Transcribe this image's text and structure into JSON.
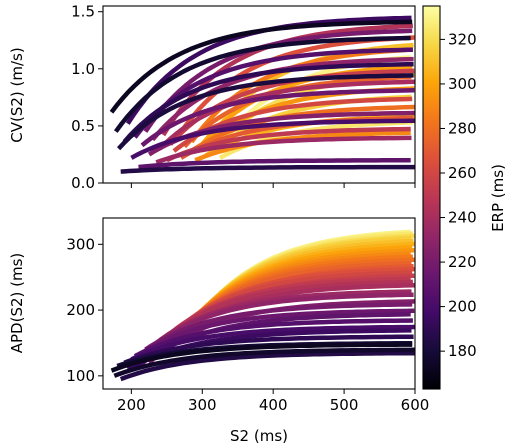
{
  "chart_data": [
    {
      "type": "line",
      "panel": "top",
      "xlabel": "",
      "ylabel": "CV(S2) (m/s)",
      "xlim": [
        160,
        600
      ],
      "ylim": [
        0.0,
        1.55
      ],
      "xticks": [
        200,
        300,
        400,
        500,
        600
      ],
      "xtick_labels_shown": false,
      "yticks": [
        0.0,
        0.5,
        1.0,
        1.5
      ],
      "ytick_labels": [
        "0.0",
        "0.5",
        "1.0",
        "1.5"
      ],
      "colored_by": "ERP (ms)",
      "series_description": "Restitution curves CV vs S2, each starting at S2 = ERP; asymptotic CV spans ~0.12–1.48 m/s",
      "curves": [
        {
          "erp": 172,
          "start_value": 0.62,
          "plateau": 1.42
        },
        {
          "erp": 178,
          "start_value": 0.45,
          "plateau": 1.28
        },
        {
          "erp": 182,
          "start_value": 0.3,
          "plateau": 0.95
        },
        {
          "erp": 185,
          "start_value": 0.1,
          "plateau": 0.14
        },
        {
          "erp": 190,
          "start_value": 0.36,
          "plateau": 1.05
        },
        {
          "erp": 195,
          "start_value": 0.52,
          "plateau": 1.46
        },
        {
          "erp": 200,
          "start_value": 0.22,
          "plateau": 0.55
        },
        {
          "erp": 205,
          "start_value": 0.4,
          "plateau": 1.18
        },
        {
          "erp": 210,
          "start_value": 0.14,
          "plateau": 0.2
        },
        {
          "erp": 215,
          "start_value": 0.33,
          "plateau": 0.82
        },
        {
          "erp": 220,
          "start_value": 0.45,
          "plateau": 1.35
        },
        {
          "erp": 225,
          "start_value": 0.25,
          "plateau": 0.62
        },
        {
          "erp": 230,
          "start_value": 0.38,
          "plateau": 1.1
        },
        {
          "erp": 235,
          "start_value": 0.18,
          "plateau": 0.4
        },
        {
          "erp": 240,
          "start_value": 0.3,
          "plateau": 0.9
        },
        {
          "erp": 245,
          "start_value": 0.42,
          "plateau": 1.4
        },
        {
          "erp": 250,
          "start_value": 0.2,
          "plateau": 0.48
        },
        {
          "erp": 255,
          "start_value": 0.34,
          "plateau": 1.0
        },
        {
          "erp": 260,
          "start_value": 0.28,
          "plateau": 0.75
        },
        {
          "erp": 265,
          "start_value": 0.4,
          "plateau": 1.3
        },
        {
          "erp": 270,
          "start_value": 0.22,
          "plateau": 0.58
        },
        {
          "erp": 275,
          "start_value": 0.32,
          "plateau": 0.95
        },
        {
          "erp": 280,
          "start_value": 0.26,
          "plateau": 0.68
        },
        {
          "erp": 285,
          "start_value": 0.36,
          "plateau": 1.2
        },
        {
          "erp": 290,
          "start_value": 0.2,
          "plateau": 0.45
        },
        {
          "erp": 295,
          "start_value": 0.3,
          "plateau": 0.85
        },
        {
          "erp": 300,
          "start_value": 0.34,
          "plateau": 1.05
        },
        {
          "erp": 305,
          "start_value": 0.24,
          "plateau": 0.6
        },
        {
          "erp": 310,
          "start_value": 0.38,
          "plateau": 1.25
        },
        {
          "erp": 315,
          "start_value": 0.28,
          "plateau": 0.78
        },
        {
          "erp": 320,
          "start_value": 0.32,
          "plateau": 0.98
        },
        {
          "erp": 325,
          "start_value": 0.22,
          "plateau": 0.55
        },
        {
          "erp": 330,
          "start_value": 0.36,
          "plateau": 1.15
        }
      ]
    },
    {
      "type": "line",
      "panel": "bottom",
      "xlabel": "S2 (ms)",
      "ylabel": "APD(S2) (ms)",
      "xlim": [
        160,
        600
      ],
      "ylim": [
        80,
        340
      ],
      "xticks": [
        200,
        300,
        400,
        500,
        600
      ],
      "xtick_labels": [
        "200",
        "300",
        "400",
        "500",
        "600"
      ],
      "yticks": [
        100,
        200,
        300
      ],
      "ytick_labels": [
        "100",
        "200",
        "300"
      ],
      "colored_by": "ERP (ms)",
      "series_description": "Restitution curves APD vs S2, each starting at S2 = ERP; asymptotic APD spans ~135–325 ms",
      "curves": [
        {
          "erp": 172,
          "start_value": 108,
          "plateau": 148
        },
        {
          "erp": 176,
          "start_value": 100,
          "plateau": 140
        },
        {
          "erp": 180,
          "start_value": 115,
          "plateau": 150
        },
        {
          "erp": 185,
          "start_value": 95,
          "plateau": 135
        },
        {
          "erp": 190,
          "start_value": 120,
          "plateau": 160
        },
        {
          "erp": 195,
          "start_value": 110,
          "plateau": 170
        },
        {
          "erp": 200,
          "start_value": 125,
          "plateau": 175
        },
        {
          "erp": 205,
          "start_value": 130,
          "plateau": 185
        },
        {
          "erp": 210,
          "start_value": 115,
          "plateau": 195
        },
        {
          "erp": 215,
          "start_value": 135,
          "plateau": 200
        },
        {
          "erp": 220,
          "start_value": 140,
          "plateau": 210
        },
        {
          "erp": 225,
          "start_value": 120,
          "plateau": 215
        },
        {
          "erp": 230,
          "start_value": 145,
          "plateau": 225
        },
        {
          "erp": 235,
          "start_value": 150,
          "plateau": 230
        },
        {
          "erp": 240,
          "start_value": 140,
          "plateau": 240
        },
        {
          "erp": 245,
          "start_value": 155,
          "plateau": 245
        },
        {
          "erp": 250,
          "start_value": 160,
          "plateau": 250
        },
        {
          "erp": 255,
          "start_value": 150,
          "plateau": 255
        },
        {
          "erp": 260,
          "start_value": 165,
          "plateau": 260
        },
        {
          "erp": 265,
          "start_value": 170,
          "plateau": 265
        },
        {
          "erp": 270,
          "start_value": 160,
          "plateau": 270
        },
        {
          "erp": 275,
          "start_value": 175,
          "plateau": 275
        },
        {
          "erp": 280,
          "start_value": 180,
          "plateau": 280
        },
        {
          "erp": 285,
          "start_value": 185,
          "plateau": 285
        },
        {
          "erp": 290,
          "start_value": 190,
          "plateau": 290
        },
        {
          "erp": 295,
          "start_value": 195,
          "plateau": 295
        },
        {
          "erp": 300,
          "start_value": 200,
          "plateau": 300
        },
        {
          "erp": 305,
          "start_value": 205,
          "plateau": 305
        },
        {
          "erp": 310,
          "start_value": 210,
          "plateau": 310
        },
        {
          "erp": 315,
          "start_value": 215,
          "plateau": 315
        },
        {
          "erp": 320,
          "start_value": 220,
          "plateau": 318
        },
        {
          "erp": 325,
          "start_value": 225,
          "plateau": 322
        },
        {
          "erp": 330,
          "start_value": 230,
          "plateau": 325
        }
      ]
    }
  ],
  "colorbar": {
    "label": "ERP (ms)",
    "range": [
      163,
      335
    ],
    "ticks": [
      180,
      200,
      220,
      240,
      260,
      280,
      300,
      320
    ],
    "tick_labels": [
      "180",
      "200",
      "220",
      "240",
      "260",
      "280",
      "300",
      "320"
    ],
    "colormap": "inferno"
  }
}
